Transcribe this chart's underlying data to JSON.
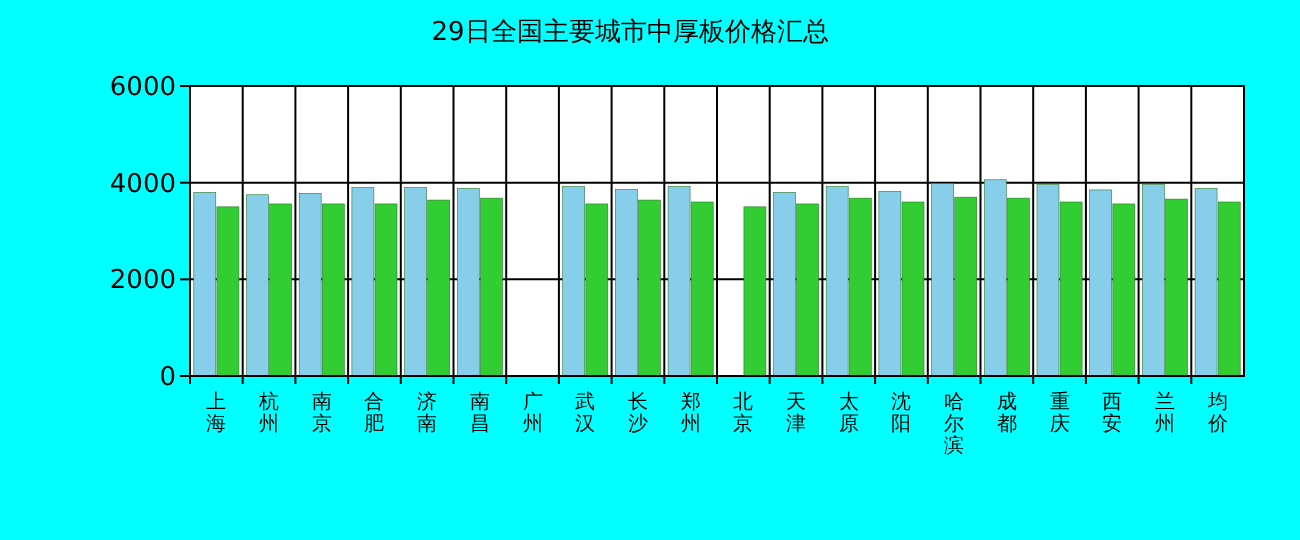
{
  "chart_data": {
    "type": "bar",
    "title": "29日全国主要城市中厚板价格汇总",
    "categories": [
      "上海",
      "杭州",
      "南京",
      "合肥",
      "济南",
      "南昌",
      "广州",
      "武汉",
      "长沙",
      "郑州",
      "北京",
      "天津",
      "太原",
      "沈阳",
      "哈尔滨",
      "成都",
      "重庆",
      "西安",
      "兰州",
      "均价"
    ],
    "series": [
      {
        "color": "#87ceeb",
        "values": [
          3800,
          3750,
          3780,
          3900,
          3900,
          3880,
          null,
          3920,
          3860,
          3920,
          null,
          3800,
          3920,
          3820,
          3980,
          4060,
          3960,
          3850,
          3960,
          3880
        ]
      },
      {
        "color": "#32cd32",
        "values": [
          3500,
          3560,
          3560,
          3560,
          3640,
          3680,
          null,
          3560,
          3640,
          3600,
          3500,
          3560,
          3680,
          3600,
          3700,
          3680,
          3600,
          3560,
          3660,
          3600
        ]
      }
    ],
    "ylim": [
      0,
      6000
    ],
    "yticks": [
      0,
      2000,
      4000,
      6000
    ],
    "grid": true
  }
}
